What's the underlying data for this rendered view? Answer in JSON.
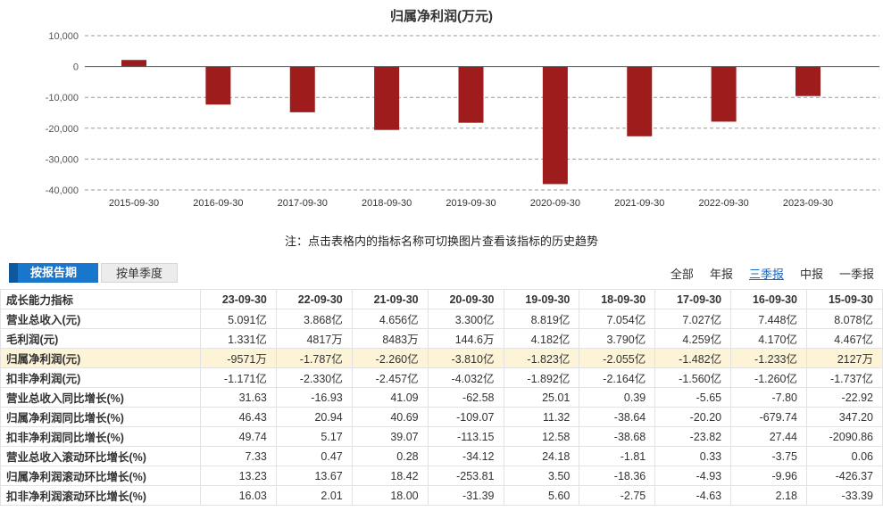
{
  "colors": {
    "bar": "#9e1c1c",
    "tab_active_bg": "#1876cc",
    "tab_active_dark": "#10589e",
    "highlight_row": "#fdf4d7",
    "link": "#1667c9",
    "grid": "#999999",
    "zero_line": "#555555"
  },
  "chart_data": {
    "type": "bar",
    "title": "归属净利润(万元)",
    "categories": [
      "2015-09-30",
      "2016-09-30",
      "2017-09-30",
      "2018-09-30",
      "2019-09-30",
      "2020-09-30",
      "2021-09-30",
      "2022-09-30",
      "2023-09-30"
    ],
    "values": [
      2127,
      -12330,
      -14820,
      -20550,
      -18230,
      -38100,
      -22600,
      -17870,
      -9571
    ],
    "ylim": [
      -40000,
      10000
    ],
    "yticks": [
      10000,
      0,
      -10000,
      -20000,
      -30000,
      -40000
    ],
    "ytick_labels": [
      "10,000",
      "0",
      "-10,000",
      "-20,000",
      "-30,000",
      "-40,000"
    ],
    "xlabel": "",
    "ylabel": "",
    "grid": "dashed-horizontal",
    "legend": "none"
  },
  "note": "注：点击表格内的指标名称可切换图片查看该指标的历史趋势",
  "toolbar": {
    "tabs": [
      {
        "key": "by-report-period",
        "label": "按报告期",
        "active": true
      },
      {
        "key": "by-single-quarter",
        "label": "按单季度",
        "active": false
      }
    ],
    "filters": [
      {
        "key": "all",
        "label": "全部",
        "active": false
      },
      {
        "key": "annual",
        "label": "年报",
        "active": false
      },
      {
        "key": "q3-report",
        "label": "三季报",
        "active": true
      },
      {
        "key": "interim",
        "label": "中报",
        "active": false
      },
      {
        "key": "q1-report",
        "label": "一季报",
        "active": false
      }
    ]
  },
  "table": {
    "header": [
      "成长能力指标",
      "23-09-30",
      "22-09-30",
      "21-09-30",
      "20-09-30",
      "19-09-30",
      "18-09-30",
      "17-09-30",
      "16-09-30",
      "15-09-30"
    ],
    "rows": [
      {
        "label": "营业总收入(元)",
        "highlight": false,
        "values": [
          "5.091亿",
          "3.868亿",
          "4.656亿",
          "3.300亿",
          "8.819亿",
          "7.054亿",
          "7.027亿",
          "7.448亿",
          "8.078亿"
        ]
      },
      {
        "label": "毛利润(元)",
        "highlight": false,
        "values": [
          "1.331亿",
          "4817万",
          "8483万",
          "144.6万",
          "4.182亿",
          "3.790亿",
          "4.259亿",
          "4.170亿",
          "4.467亿"
        ]
      },
      {
        "label": "归属净利润(元)",
        "highlight": true,
        "values": [
          "-9571万",
          "-1.787亿",
          "-2.260亿",
          "-3.810亿",
          "-1.823亿",
          "-2.055亿",
          "-1.482亿",
          "-1.233亿",
          "2127万"
        ]
      },
      {
        "label": "扣非净利润(元)",
        "highlight": false,
        "values": [
          "-1.171亿",
          "-2.330亿",
          "-2.457亿",
          "-4.032亿",
          "-1.892亿",
          "-2.164亿",
          "-1.560亿",
          "-1.260亿",
          "-1.737亿"
        ]
      },
      {
        "label": "营业总收入同比增长(%)",
        "highlight": false,
        "values": [
          "31.63",
          "-16.93",
          "41.09",
          "-62.58",
          "25.01",
          "0.39",
          "-5.65",
          "-7.80",
          "-22.92"
        ]
      },
      {
        "label": "归属净利润同比增长(%)",
        "highlight": false,
        "values": [
          "46.43",
          "20.94",
          "40.69",
          "-109.07",
          "11.32",
          "-38.64",
          "-20.20",
          "-679.74",
          "347.20"
        ]
      },
      {
        "label": "扣非净利润同比增长(%)",
        "highlight": false,
        "values": [
          "49.74",
          "5.17",
          "39.07",
          "-113.15",
          "12.58",
          "-38.68",
          "-23.82",
          "27.44",
          "-2090.86"
        ]
      },
      {
        "label": "营业总收入滚动环比增长(%)",
        "highlight": false,
        "values": [
          "7.33",
          "0.47",
          "0.28",
          "-34.12",
          "24.18",
          "-1.81",
          "0.33",
          "-3.75",
          "0.06"
        ]
      },
      {
        "label": "归属净利润滚动环比增长(%)",
        "highlight": false,
        "values": [
          "13.23",
          "13.67",
          "18.42",
          "-253.81",
          "3.50",
          "-18.36",
          "-4.93",
          "-9.96",
          "-426.37"
        ]
      },
      {
        "label": "扣非净利润滚动环比增长(%)",
        "highlight": false,
        "values": [
          "16.03",
          "2.01",
          "18.00",
          "-31.39",
          "5.60",
          "-2.75",
          "-4.63",
          "2.18",
          "-33.39"
        ]
      }
    ]
  }
}
